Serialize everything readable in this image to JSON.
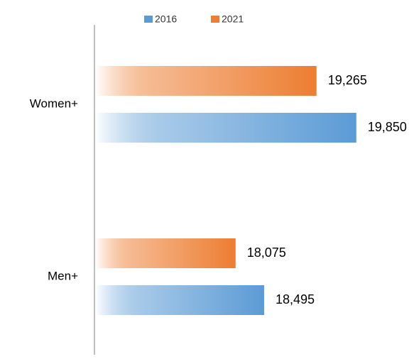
{
  "chart_data": {
    "type": "barh",
    "categories": [
      "Women+",
      "Men+"
    ],
    "series": [
      {
        "name": "2021",
        "color": "#ed7d31",
        "values": [
          19265,
          18075
        ],
        "value_labels": [
          "19,265",
          "18,075"
        ]
      },
      {
        "name": "2016",
        "color": "#5b9bd5",
        "values": [
          19850,
          18495
        ],
        "value_labels": [
          "19,850",
          "18,495"
        ]
      }
    ],
    "legend_order": [
      "2016",
      "2021"
    ],
    "xlim": [
      16000,
      20500
    ]
  }
}
